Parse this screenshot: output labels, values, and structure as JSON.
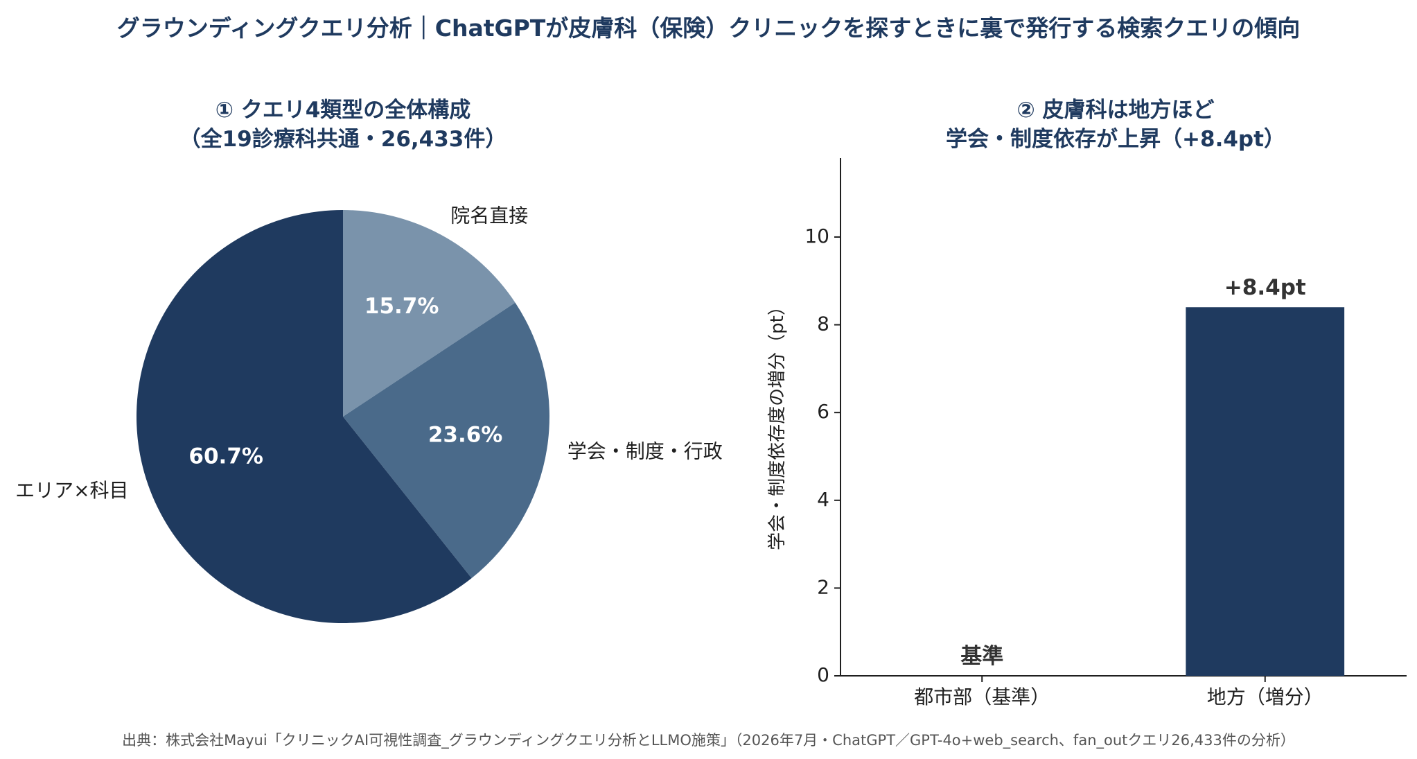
{
  "title": "グラウンディングクエリ分析｜ChatGPTが皮膚科（保険）クリニックを探すときに裏で発行する検索クエリの傾向",
  "source": "出典：株式会社Mayui「クリニックAI可視性調査_グラウンディングクエリ分析とLLMO施策」（2026年7月・ChatGPT／GPT-4o+web_search、fan_outクエリ26,433件の分析）",
  "colors": {
    "dark": "#1f3a5f",
    "mid": "#4a6a8a",
    "light": "#7a93ab",
    "title": "#1f3a5f"
  },
  "chart_data": [
    {
      "type": "pie",
      "title_line1": "① クエリ4類型の全体構成",
      "title_line2": "（全19診療科共通・26,433件）",
      "start_angle_deg": 0,
      "direction": "clockwise",
      "slices": [
        {
          "label": "院名直接",
          "value": 15.7,
          "pct_label": "15.7%",
          "color": "#7a93ab"
        },
        {
          "label": "学会・制度・行政",
          "value": 23.6,
          "pct_label": "23.6%",
          "color": "#4a6a8a"
        },
        {
          "label": "エリア×科目",
          "value": 60.7,
          "pct_label": "60.7%",
          "color": "#1f3a5f"
        }
      ]
    },
    {
      "type": "bar",
      "title_line1": "② 皮膚科は地方ほど",
      "title_line2": "学会・制度依存が上昇（+8.4pt）",
      "ylabel": "学会・制度依存度の増分（pt）",
      "ylim": [
        0,
        11.8
      ],
      "yticks": [
        0,
        2,
        4,
        6,
        8,
        10
      ],
      "categories": [
        "都市部（基準）",
        "地方（増分）"
      ],
      "values": [
        0,
        8.4
      ],
      "data_labels": [
        "基準",
        "+8.4pt"
      ],
      "bar_color": "#1f3a5f",
      "grid": false
    }
  ]
}
